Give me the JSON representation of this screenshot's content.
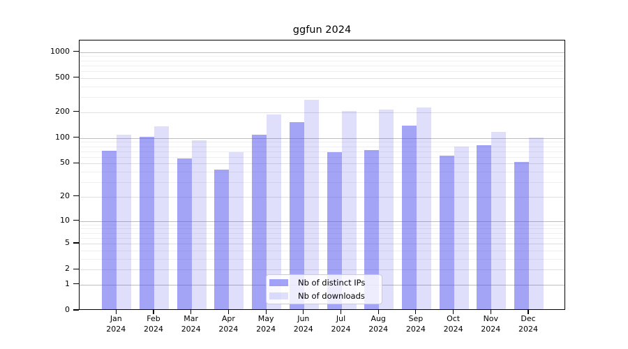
{
  "title": "ggfun 2024",
  "chart_data": {
    "type": "bar",
    "title": "ggfun 2024",
    "x_axis": {
      "categories": [
        "Jan",
        "Feb",
        "Mar",
        "Apr",
        "May",
        "Jun",
        "Jul",
        "Aug",
        "Sep",
        "Oct",
        "Nov",
        "Dec"
      ],
      "sub_label": "2024"
    },
    "y_axis": {
      "scale": "log1p",
      "ticks": [
        0,
        1,
        2,
        5,
        10,
        20,
        50,
        100,
        200,
        500,
        1000
      ],
      "minor_gridlines": [
        3,
        4,
        6,
        7,
        8,
        9,
        30,
        40,
        60,
        70,
        80,
        90,
        300,
        400,
        600,
        700,
        800,
        900
      ],
      "range": [
        0,
        1370
      ],
      "grid": true
    },
    "series": [
      {
        "name": "Nb of distinct IPs",
        "key": "distinct-ips",
        "color": "rgba(80,80,240,0.52)",
        "color_hex_on_white": "#a9a9f8",
        "values": [
          68,
          100,
          55,
          41,
          106,
          148,
          66,
          69,
          134,
          60,
          79,
          50
        ]
      },
      {
        "name": "Nb of downloads",
        "key": "downloads",
        "color": "rgba(80,80,240,0.18)",
        "color_hex_on_white": "#dcdcfb",
        "values": [
          105,
          131,
          90,
          65,
          181,
          268,
          199,
          206,
          219,
          77,
          113,
          97
        ]
      }
    ],
    "legend": {
      "position": "bottom-center",
      "entries": [
        "Nb of distinct IPs",
        "Nb of downloads"
      ]
    }
  },
  "colors": {
    "background": "#ffffff",
    "axis": "#000000",
    "grid_major_decade": "#bdbdbd",
    "grid_major": "#e0e0e0",
    "grid_minor": "#efefef",
    "legend_border": "#cccccc"
  }
}
